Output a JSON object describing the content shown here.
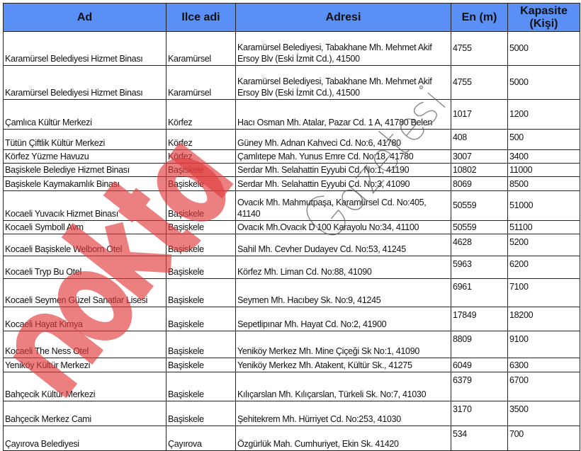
{
  "table": {
    "headers": [
      "Ad",
      "Ilce adi",
      "Adresi",
      "En (m)",
      "Kapasite (Kişi)"
    ],
    "rows": [
      [
        "Karamürsel Belediyesi Hizmet Binası",
        "Karamürsel",
        "Karamürsel Belediyesi, Tabakhane Mh. Mehmet Akif Ersoy Blv (Eski İzmit Cd.), 41500",
        "4755",
        "5000"
      ],
      [
        "Karamürsel Belediyesi Hizmet Binası",
        "Karamürsel",
        "Karamürsel Belediyesi, Tabakhane Mh. Mehmet Akif Ersoy Blv (Eski İzmit Cd.), 41500",
        "4755",
        "5000"
      ],
      [
        "Çamlıca Kültür Merkezi",
        "Körfez",
        "Hacı Osman Mh. Atalar, Pazar Cd. 1 A, 41780 Belen",
        "1017",
        "1200"
      ],
      [
        "Tütün Çiftlik Kültür Merkezi",
        "Körfez",
        "Güney Mh.  Adnan Kahveci Cd. No:6, 41780",
        "408",
        "500"
      ],
      [
        "Körfez Yüzme Havuzu",
        "Körfez",
        "Çamlıtepe Mah. Yunus Emre Cd. No:18, 41780",
        "3007",
        "3400"
      ],
      [
        "Başiskele Belediye Hizmet Binası",
        "Başiskele",
        "Serdar Mh. Selahattin Eyyubi Cd. No:1, 41190",
        "10802",
        "11000"
      ],
      [
        "Başiskele Kaymakamlık Binası",
        "Başiskele",
        "Serdar Mh. Selahattin Eyyubi Cd. No:3, 41090",
        "8069",
        "8500"
      ],
      [
        "Kocaeli Yuvacık Hizmet Binası",
        "Başiskele",
        "Ovacık Mh. Mahmutpaşa, Karamürsel Cd. No:405, 41140",
        "50559",
        "51000"
      ],
      [
        "Kocaeli Symboll Avm",
        "Başiskele",
        "Ovacık Mh.Ovacık D 100 Karayolu No:34, 41100",
        "50559",
        "51100"
      ],
      [
        "Kocaeli Başiskele Welborn Otel",
        "Başiskele",
        "Sahil Mh.  Cevher Dudayev Cd. No:53, 41245",
        "4628",
        "5200"
      ],
      [
        "Kocaeli  Tryp Bu Otel",
        "Başiskele",
        "Körfez Mh.  Liman Cd. No:88, 41090",
        "5963",
        "6200"
      ],
      [
        "Kocaeli  Seymen Güzel Sanatlar Lisesi",
        "Başiskele",
        "Seymen Mh.  Hacıbey Sk. No:9, 41245",
        "6961",
        "7100"
      ],
      [
        "Kocaeli  Hayat Kimya",
        "Başiskele",
        "Sepetlipınar Mh. Hayat Cd. No:2, 41900",
        "17849",
        "18200"
      ],
      [
        "Kocaeli The Ness Otel",
        "Başiskele",
        "Yeniköy Merkez Mh. Mine Çiçeği Sk No:1, 41090",
        "8809",
        "9100"
      ],
      [
        "Yeniköy Kültür Merkezi",
        "Başiskele",
        "Yeniköy Merkez Mh. Atakent, Kültür Sk., 41275",
        "6049",
        "6300"
      ],
      [
        "Bahçecik Kültür Merkezi",
        "Başiskele",
        "Kılıçarslan Mh.  Kılıçarslan, Türkeli Sk. No:7, 41030",
        "6379",
        "6700"
      ],
      [
        "Bahçecik Merkez Cami",
        "Başiskele",
        "Şehitekrem Mh. Hürriyet Cd. No:253, 41030",
        "3170",
        "3500"
      ],
      [
        "Çayırova Belediyesi",
        "Çayırova",
        "Özgürlük Mah. Cumhuriyet, Ekin Sk. 41420",
        "534",
        "700"
      ]
    ]
  },
  "header_color": "#5a8ff5",
  "watermark": {
    "primary": "nokta",
    "secondary": "Gazetesi",
    "primary_color": "#e23c3c"
  }
}
